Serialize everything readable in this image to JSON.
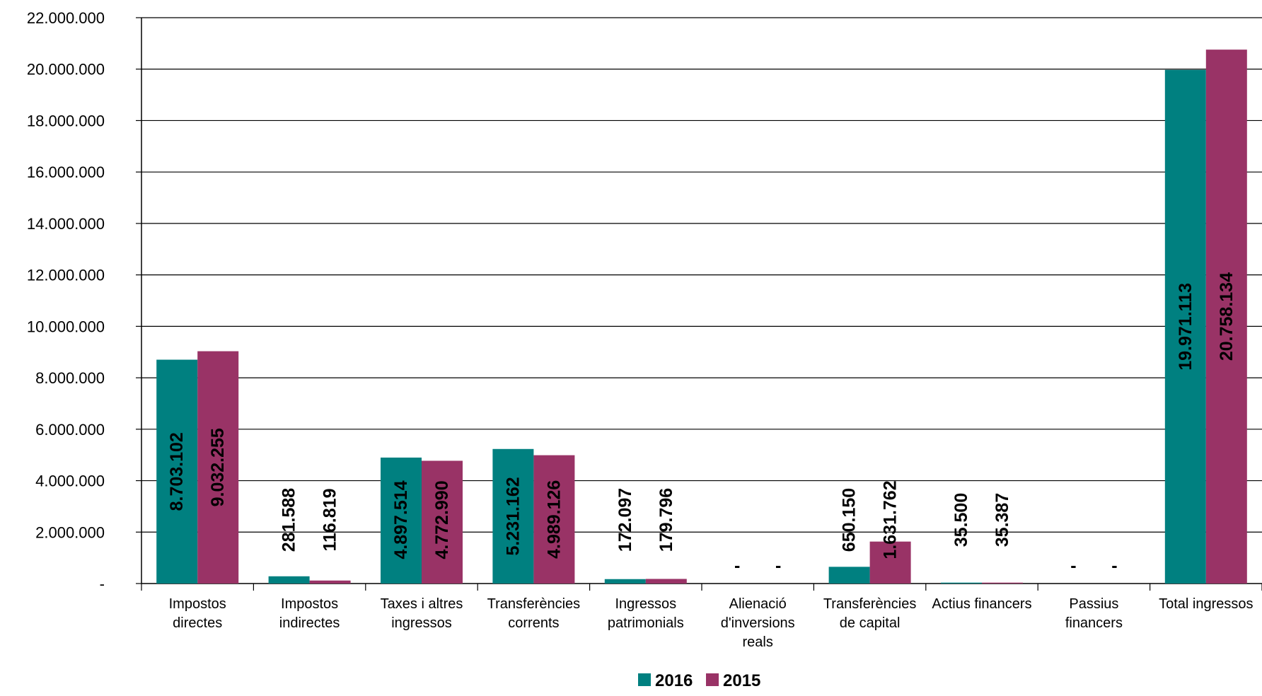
{
  "chart_data": {
    "type": "bar",
    "categories": [
      [
        "Impostos",
        "directes"
      ],
      [
        "Impostos",
        "indirectes"
      ],
      [
        "Taxes i altres",
        "ingressos"
      ],
      [
        "Transferències",
        "corrents"
      ],
      [
        "Ingressos",
        "patrimonials"
      ],
      [
        "Alienació",
        "d'inversions",
        "reals"
      ],
      [
        "Transferències",
        "de capital"
      ],
      [
        "Actius financers"
      ],
      [
        "Passius",
        "financers"
      ],
      [
        "Total ingressos"
      ]
    ],
    "series": [
      {
        "name": "2016",
        "color": "#008080",
        "values": [
          8703102,
          281588,
          4897514,
          5231162,
          172097,
          0,
          650150,
          35500,
          0,
          19971113
        ],
        "labels": [
          "8.703.102",
          "281.588",
          "4.897.514",
          "5.231.162",
          "172.097",
          "-",
          "650.150",
          "35.500",
          "-",
          "19.971.113"
        ]
      },
      {
        "name": "2015",
        "color": "#993366",
        "values": [
          9032255,
          116819,
          4772990,
          4989126,
          179796,
          0,
          1631762,
          35387,
          0,
          20758134
        ],
        "labels": [
          "9.032.255",
          "116.819",
          "4.772.990",
          "4.989.126",
          "179.796",
          "-",
          "1.631.762",
          "35.387",
          "-",
          "20.758.134"
        ]
      }
    ],
    "ylim": [
      0,
      22000000
    ],
    "yticks": [
      0,
      2000000,
      4000000,
      6000000,
      8000000,
      10000000,
      12000000,
      14000000,
      16000000,
      18000000,
      20000000,
      22000000
    ],
    "ytick_labels": [
      "-",
      "2.000.000",
      "4.000.000",
      "6.000.000",
      "8.000.000",
      "10.000.000",
      "12.000.000",
      "14.000.000",
      "16.000.000",
      "18.000.000",
      "20.000.000",
      "22.000.000"
    ],
    "grid": true,
    "legend": "bottom-center"
  }
}
